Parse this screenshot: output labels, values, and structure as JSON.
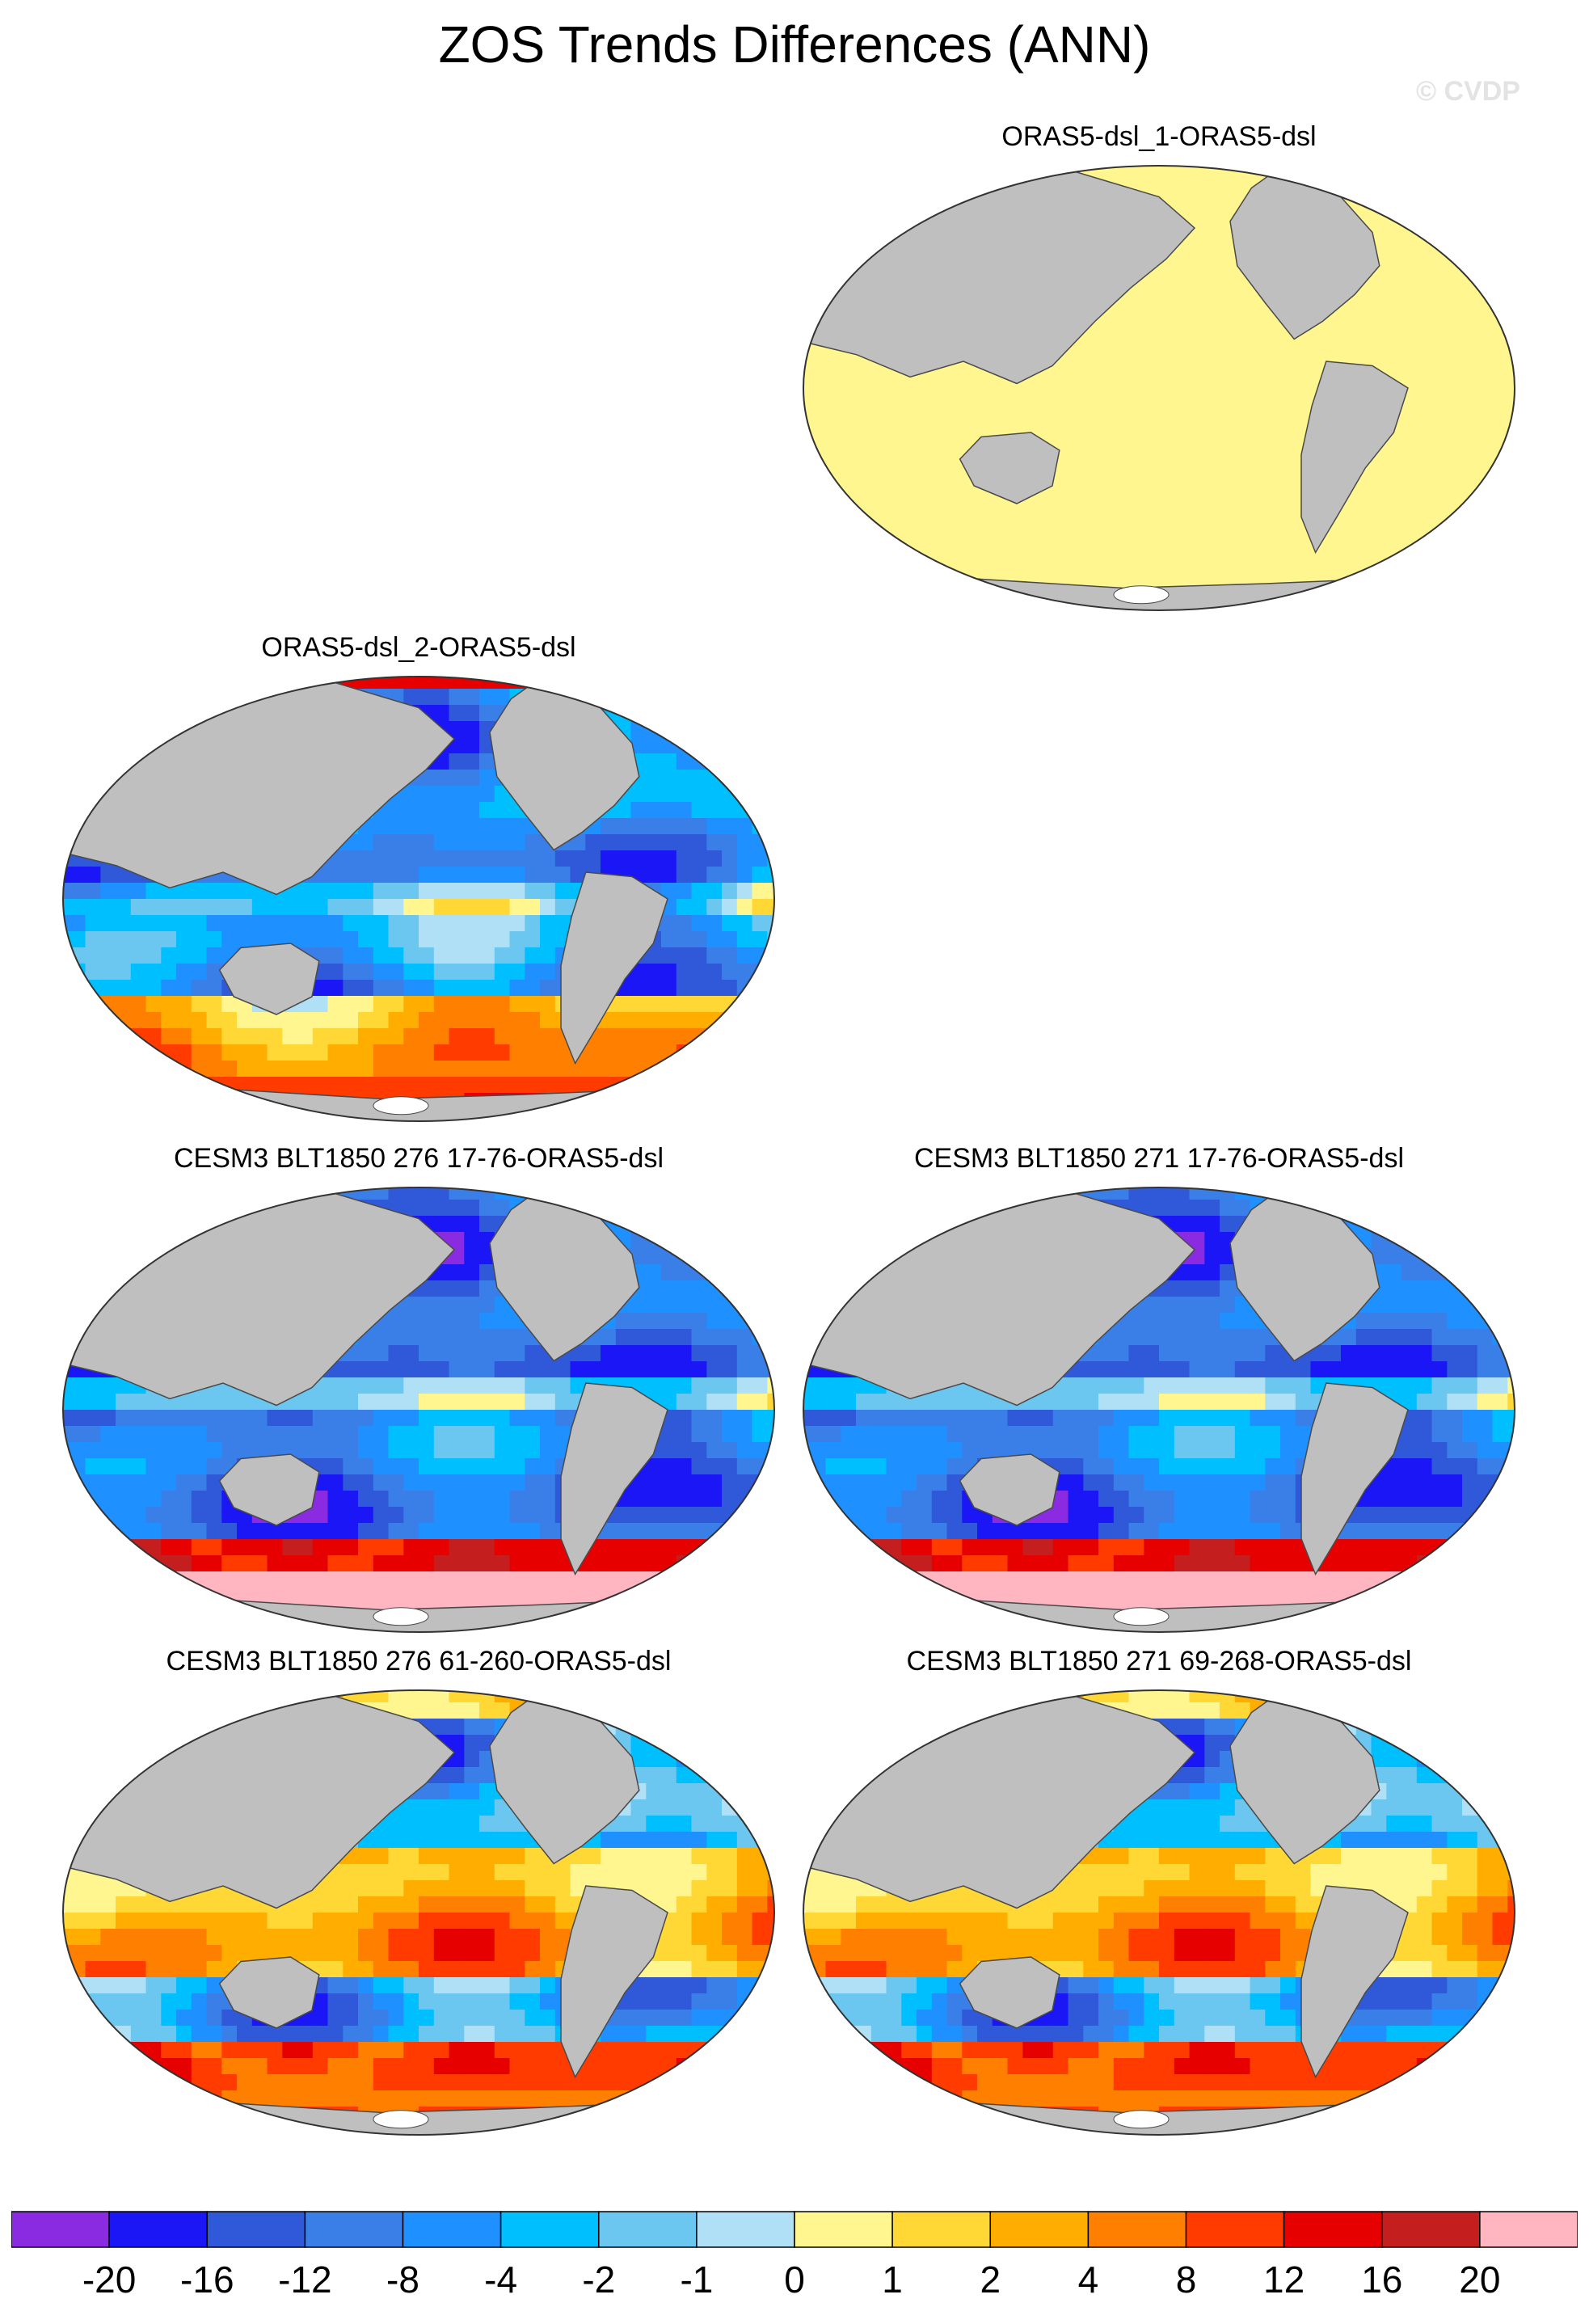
{
  "figure": {
    "title": "ZOS Trends Differences (ANN)",
    "watermark": "© CVDP"
  },
  "colors": {
    "land": "#bfbfbf",
    "antarctica_ice": "#ffffff",
    "coast": "#4a4a4a"
  },
  "panels": [
    {
      "id": "p1",
      "title": "ORAS5-dsl_1-ORAS5-dsl",
      "field": "uniform",
      "uniform_level": 8
    },
    {
      "id": "p2",
      "title": "ORAS5-dsl_2-ORAS5-dsl",
      "field": "mixed"
    },
    {
      "id": "p3",
      "title": "CESM3 BLT1850 276 17-76-ORAS5-dsl",
      "field": "negative"
    },
    {
      "id": "p4",
      "title": "CESM3 BLT1850 271 17-76-ORAS5-dsl",
      "field": "negative"
    },
    {
      "id": "p5",
      "title": "CESM3 BLT1850 276 61-260-ORAS5-dsl",
      "field": "positive"
    },
    {
      "id": "p6",
      "title": "CESM3 BLT1850 271 69-268-ORAS5-dsl",
      "field": "positive"
    }
  ],
  "colorbar": {
    "colors": [
      "#8a2be2",
      "#1a16f5",
      "#2f59d8",
      "#3a7fe8",
      "#1e90ff",
      "#00bfff",
      "#6cc7f0",
      "#b0e0f5",
      "#fff68f",
      "#ffd836",
      "#ffae00",
      "#ff7f00",
      "#ff3b00",
      "#e60000",
      "#c41e1e",
      "#ffb6c1"
    ],
    "labels": [
      "-20",
      "-16",
      "-12",
      "-8",
      "-4",
      "-2",
      "-1",
      "0",
      "1",
      "2",
      "4",
      "8",
      "12",
      "16",
      "20"
    ]
  }
}
